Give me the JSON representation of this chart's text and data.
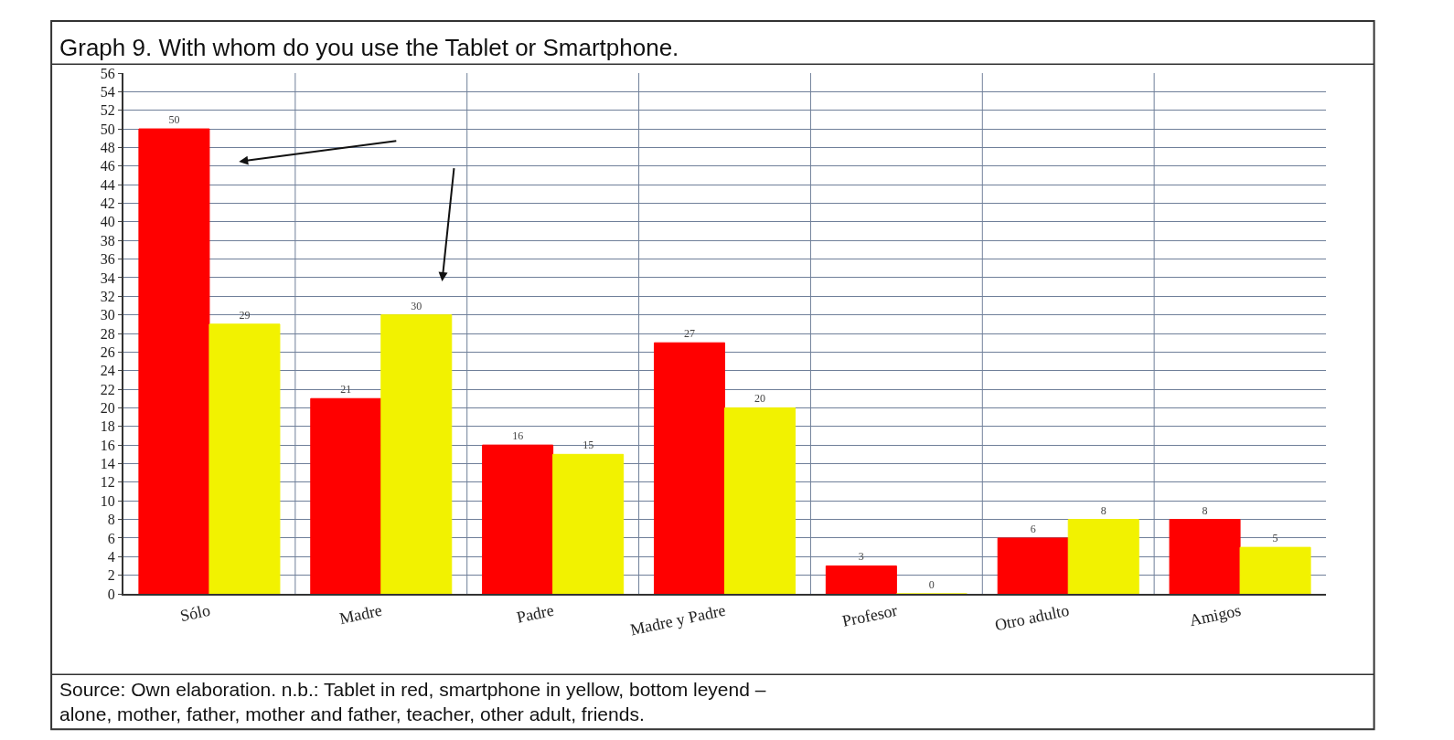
{
  "chart_data": {
    "type": "bar",
    "title": "Graph 9. With whom do you use the Tablet or Smartphone.",
    "categories": [
      "Sólo",
      "Madre",
      "Padre",
      "Madre y Padre",
      "Profesor",
      "Otro adulto",
      "Amigos"
    ],
    "series": [
      {
        "color": "#ff0000",
        "values": [
          50,
          21,
          16,
          27,
          3,
          6,
          8
        ]
      },
      {
        "color": "#f2f200",
        "values": [
          29,
          30,
          15,
          20,
          0,
          8,
          5
        ]
      }
    ],
    "ylim": [
      0,
      56
    ],
    "yticks": [
      0,
      2,
      4,
      6,
      8,
      10,
      12,
      14,
      16,
      18,
      20,
      22,
      24,
      26,
      28,
      30,
      32,
      34,
      36,
      38,
      40,
      42,
      44,
      46,
      48,
      50,
      52,
      54,
      56
    ],
    "grid": true,
    "data_labels": true,
    "legend": false,
    "annotations": [
      "Source: Own elaboration. n.b.: Tablet in red, smartphone in yellow, bottom leyend –\nalone, mother, father, mother and father, teacher, other adult, friends."
    ]
  }
}
